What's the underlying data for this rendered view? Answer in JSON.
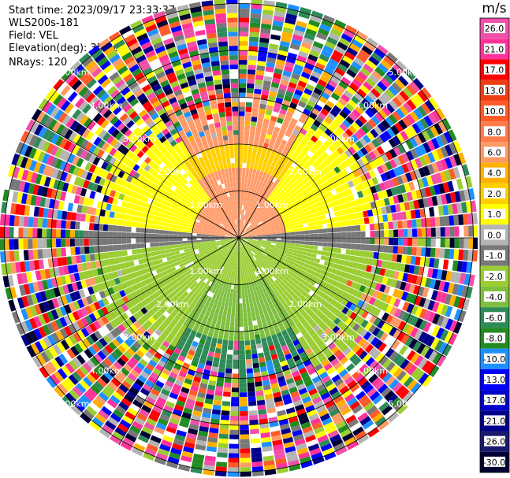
{
  "header": {
    "start_time": "Start time: 2023/09/17 23:33:37",
    "instrument": "WLS200s-181",
    "field": "Field: VEL",
    "elevation": "Elevation(deg): 35.30",
    "nrays": "NRays: 120"
  },
  "chart_data": {
    "type": "heatmap",
    "projection": "polar-ppi",
    "range_ring_labels": [
      "1.00km",
      "2.00km",
      "3.00km",
      "4.00km",
      "5.00km"
    ],
    "range_rings_km": [
      1,
      2,
      3,
      4,
      5
    ],
    "max_range_km": 5.1,
    "n_rays": 120,
    "colorbar": {
      "unit": "m/s",
      "tick_labels": [
        "26.0",
        "21.0",
        "17.0",
        "13.0",
        "10.0",
        "8.0",
        "6.0",
        "4.0",
        "2.0",
        "1.0",
        "0.0",
        "-1.0",
        "-2.0",
        "-4.0",
        "-6.0",
        "-8.0",
        "-10.0",
        "-13.0",
        "-17.0",
        "-21.0",
        "-26.0",
        "-30.0"
      ],
      "colors": [
        "#f050a8",
        "#ff3399",
        "#ff0000",
        "#f03c14",
        "#ff5a28",
        "#ff7b4a",
        "#ff9966",
        "#ffb000",
        "#ffd000",
        "#ffff00",
        "#b4b4b4",
        "#787878",
        "#9acd32",
        "#7fbf3f",
        "#2e8b57",
        "#228b22",
        "#1e90ff",
        "#0000ff",
        "#0000cd",
        "#00008b",
        "#191970",
        "#000033"
      ]
    },
    "sectors": {
      "north": "positive (toward 2 to 8 m/s)",
      "south": "negative (toward -2 to -8 m/s)"
    }
  }
}
